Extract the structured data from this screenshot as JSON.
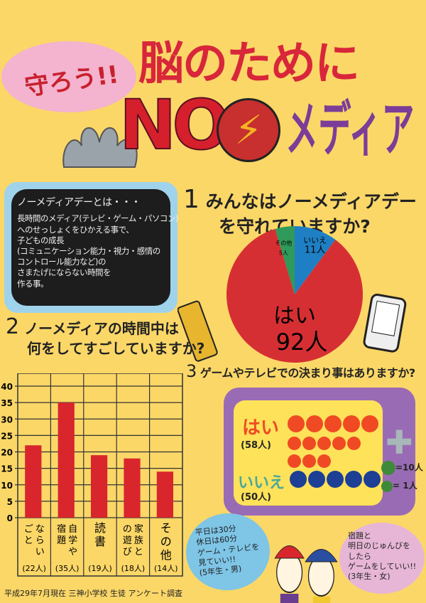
{
  "header": {
    "slogan": "守ろう!!",
    "title_line1": "脳のために",
    "title_no": "NO",
    "title_media": "メディア"
  },
  "blackboard": {
    "heading": "ノーメディアデーとは・・・",
    "body": [
      "長時間のメディア(テレビ・ゲーム・パソコン)",
      "へのせっしょくをひかえる事で、",
      "子どもの成長",
      "(コミュニケーション能力・視力・感情の",
      "コントロール能力など)の",
      "さまたげにならない時間を",
      "作る事。"
    ]
  },
  "q1": {
    "number": "1",
    "line1": "みんなはノーメディアデー",
    "line2": "を守れていますか?"
  },
  "q2": {
    "number": "2",
    "line1": "ノーメディアの時間中は",
    "line2": "何をしてすごしていますか?"
  },
  "q3": {
    "number": "3",
    "text": "ゲームやテレビでの決まり事はありますか?",
    "yes_label": "はい",
    "yes_count": "(58人)",
    "no_label": "いいえ",
    "no_count": "(50人)",
    "legend_big": "=10人",
    "legend_small": "= 1人"
  },
  "comments": [
    {
      "text": [
        "平日は30分",
        "休日は60分",
        "ゲーム・テレビを",
        "見ていい!!",
        "(5年生・男)"
      ]
    },
    {
      "text": [
        "宿題と",
        "明日のじゅんびを",
        "したら",
        "ゲームをしていい!!",
        "(3年生・女)"
      ]
    }
  ],
  "footer": "平成29年7月現在 三神小学校 生徒 アンケート調査",
  "colors": {
    "background": "#fbd768",
    "red": "#d61f2c",
    "blue": "#1f7fc4",
    "green": "#2f9a5a",
    "purple": "#9a6bb5",
    "orange_dot": "#ef4a24",
    "navy_dot": "#1d3f95"
  },
  "chart_data": [
    {
      "type": "pie",
      "slices": [
        {
          "label": "いいえ",
          "text": "11人",
          "value": 11,
          "color": "#1f7fc4"
        },
        {
          "label": "はい",
          "text": "92人",
          "value": 92,
          "color": "#d62f33"
        },
        {
          "label": "その他",
          "text": "5人",
          "value": 5,
          "color": "#2f9a5a"
        }
      ]
    },
    {
      "type": "bar",
      "categories": [
        "ならいごと",
        "自学や宿題",
        "読書",
        "家族との遊び",
        "その他"
      ],
      "category_counts": [
        "(22人)",
        "(35人)",
        "(19人)",
        "(18人)",
        "(14人)"
      ],
      "values": [
        22,
        35,
        19,
        18,
        14
      ],
      "yticks": [
        0,
        5,
        10,
        15,
        20,
        25,
        30,
        35,
        40
      ],
      "ylim": [
        0,
        40
      ],
      "grid": true,
      "bar_color": "#d8262c"
    },
    {
      "type": "pictogram",
      "series": [
        {
          "name": "はい",
          "value": 58,
          "color": "#ef4a24"
        },
        {
          "name": "いいえ",
          "value": 50,
          "color": "#1d3f95"
        }
      ],
      "unit_big": 10,
      "unit_small": 1
    }
  ]
}
